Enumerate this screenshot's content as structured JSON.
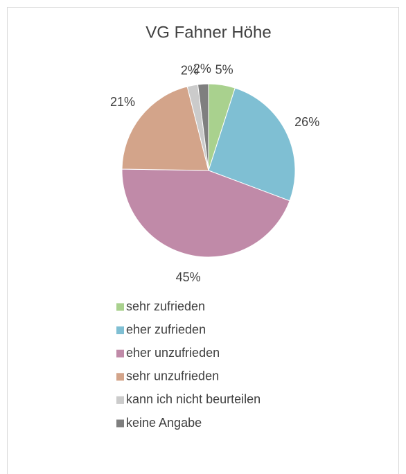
{
  "chart_data": {
    "type": "pie",
    "title": "VG Fahner Höhe",
    "categories": [
      "sehr zufrieden",
      "eher zufrieden",
      "eher unzufrieden",
      "sehr unzufrieden",
      "kann ich nicht beurteilen",
      "keine Angabe"
    ],
    "values": [
      5,
      26,
      45,
      21,
      2,
      2
    ],
    "value_labels": [
      "5%",
      "26%",
      "45%",
      "21%",
      "2%",
      "2%"
    ],
    "colors": [
      "#a9d18e",
      "#7fbfd3",
      "#c08aa8",
      "#d3a48a",
      "#cbcbcb",
      "#7f7f7f"
    ],
    "legend": "bottom"
  }
}
